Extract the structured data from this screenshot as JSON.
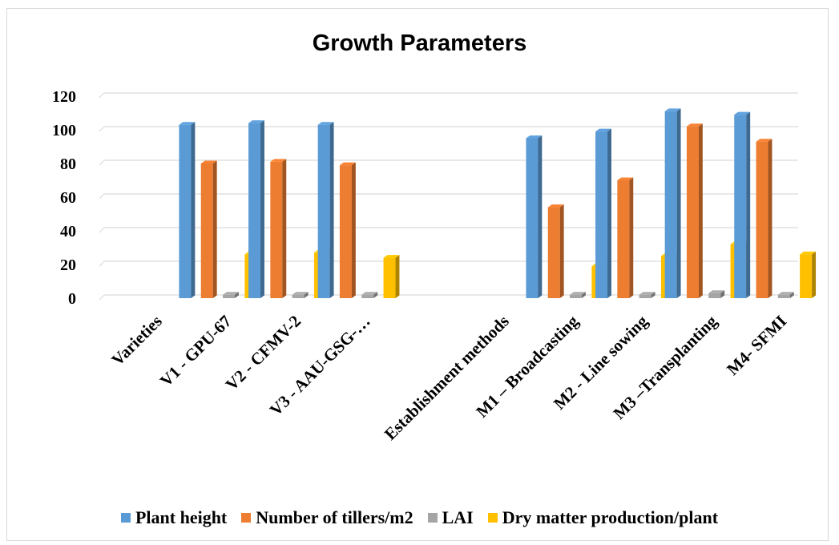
{
  "chart_data": {
    "type": "bar",
    "title": "Growth Parameters",
    "categories": [
      "Varieties",
      "V1 - GPU-67",
      "V2 - CFMV-2",
      "V3 - AAU-GSG-…",
      "",
      "Establishment methods",
      "M1 – Broadcasting",
      "M2 - Line sowing",
      "M3 –Transplanting",
      "M4- SFMI"
    ],
    "series": [
      {
        "name": "Plant height",
        "color": "#5B9BD5",
        "values": [
          null,
          103,
          104,
          103,
          null,
          null,
          95,
          99,
          111,
          109
        ]
      },
      {
        "name": "Number of tillers/m2",
        "color": "#ED7D31",
        "values": [
          null,
          80,
          81,
          79,
          null,
          null,
          54,
          70,
          102,
          93
        ]
      },
      {
        "name": "LAI",
        "color": "#A5A5A5",
        "values": [
          null,
          2,
          2,
          2,
          null,
          null,
          2,
          2,
          3,
          2
        ]
      },
      {
        "name": "Dry matter production/plant",
        "color": "#FFC000",
        "values": [
          null,
          26,
          27,
          24,
          null,
          null,
          19,
          25,
          32,
          26
        ]
      }
    ],
    "yticks": [
      0,
      20,
      40,
      60,
      80,
      100,
      120
    ],
    "ylim": [
      0,
      120
    ],
    "grid": true,
    "legend": "bottom"
  }
}
